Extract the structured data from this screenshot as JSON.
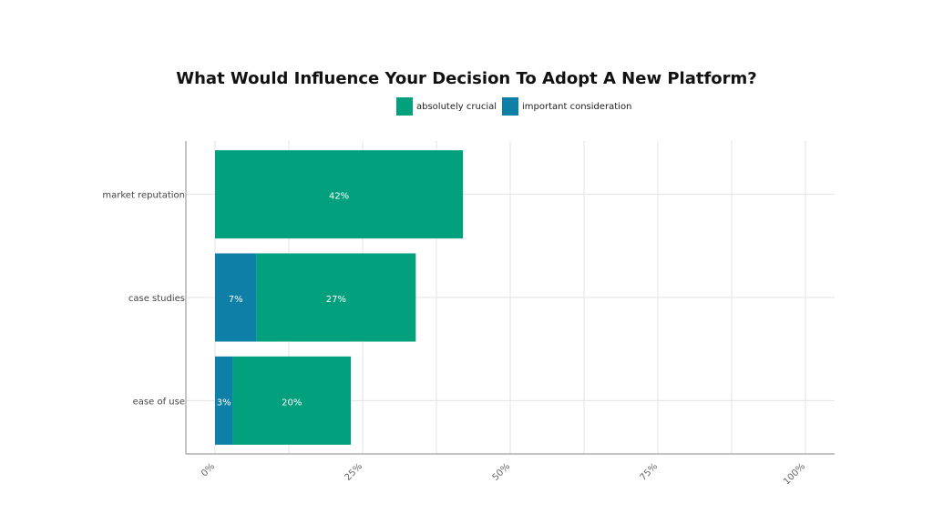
{
  "chart_data": {
    "type": "bar",
    "orientation": "horizontal",
    "stacked": true,
    "title": "What Would Influence Your Decision To Adopt A New Platform?",
    "categories": [
      "market reputation",
      "case studies",
      "ease of use"
    ],
    "series": [
      {
        "name": "important consideration",
        "values": [
          0,
          7,
          3
        ],
        "labels": [
          "",
          "7%",
          "3%"
        ],
        "color": "#0e7fa6"
      },
      {
        "name": "absolutely crucial",
        "values": [
          42,
          27,
          20
        ],
        "labels": [
          "42%",
          "27%",
          "20%"
        ],
        "color": "#02a07c"
      }
    ],
    "legend_order": [
      "absolutely crucial",
      "important consideration"
    ],
    "xlim": [
      0,
      100
    ],
    "xticks": [
      "0%",
      "25%",
      "50%",
      "75%",
      "100%"
    ],
    "grid": true,
    "legend_position": "top-center"
  }
}
